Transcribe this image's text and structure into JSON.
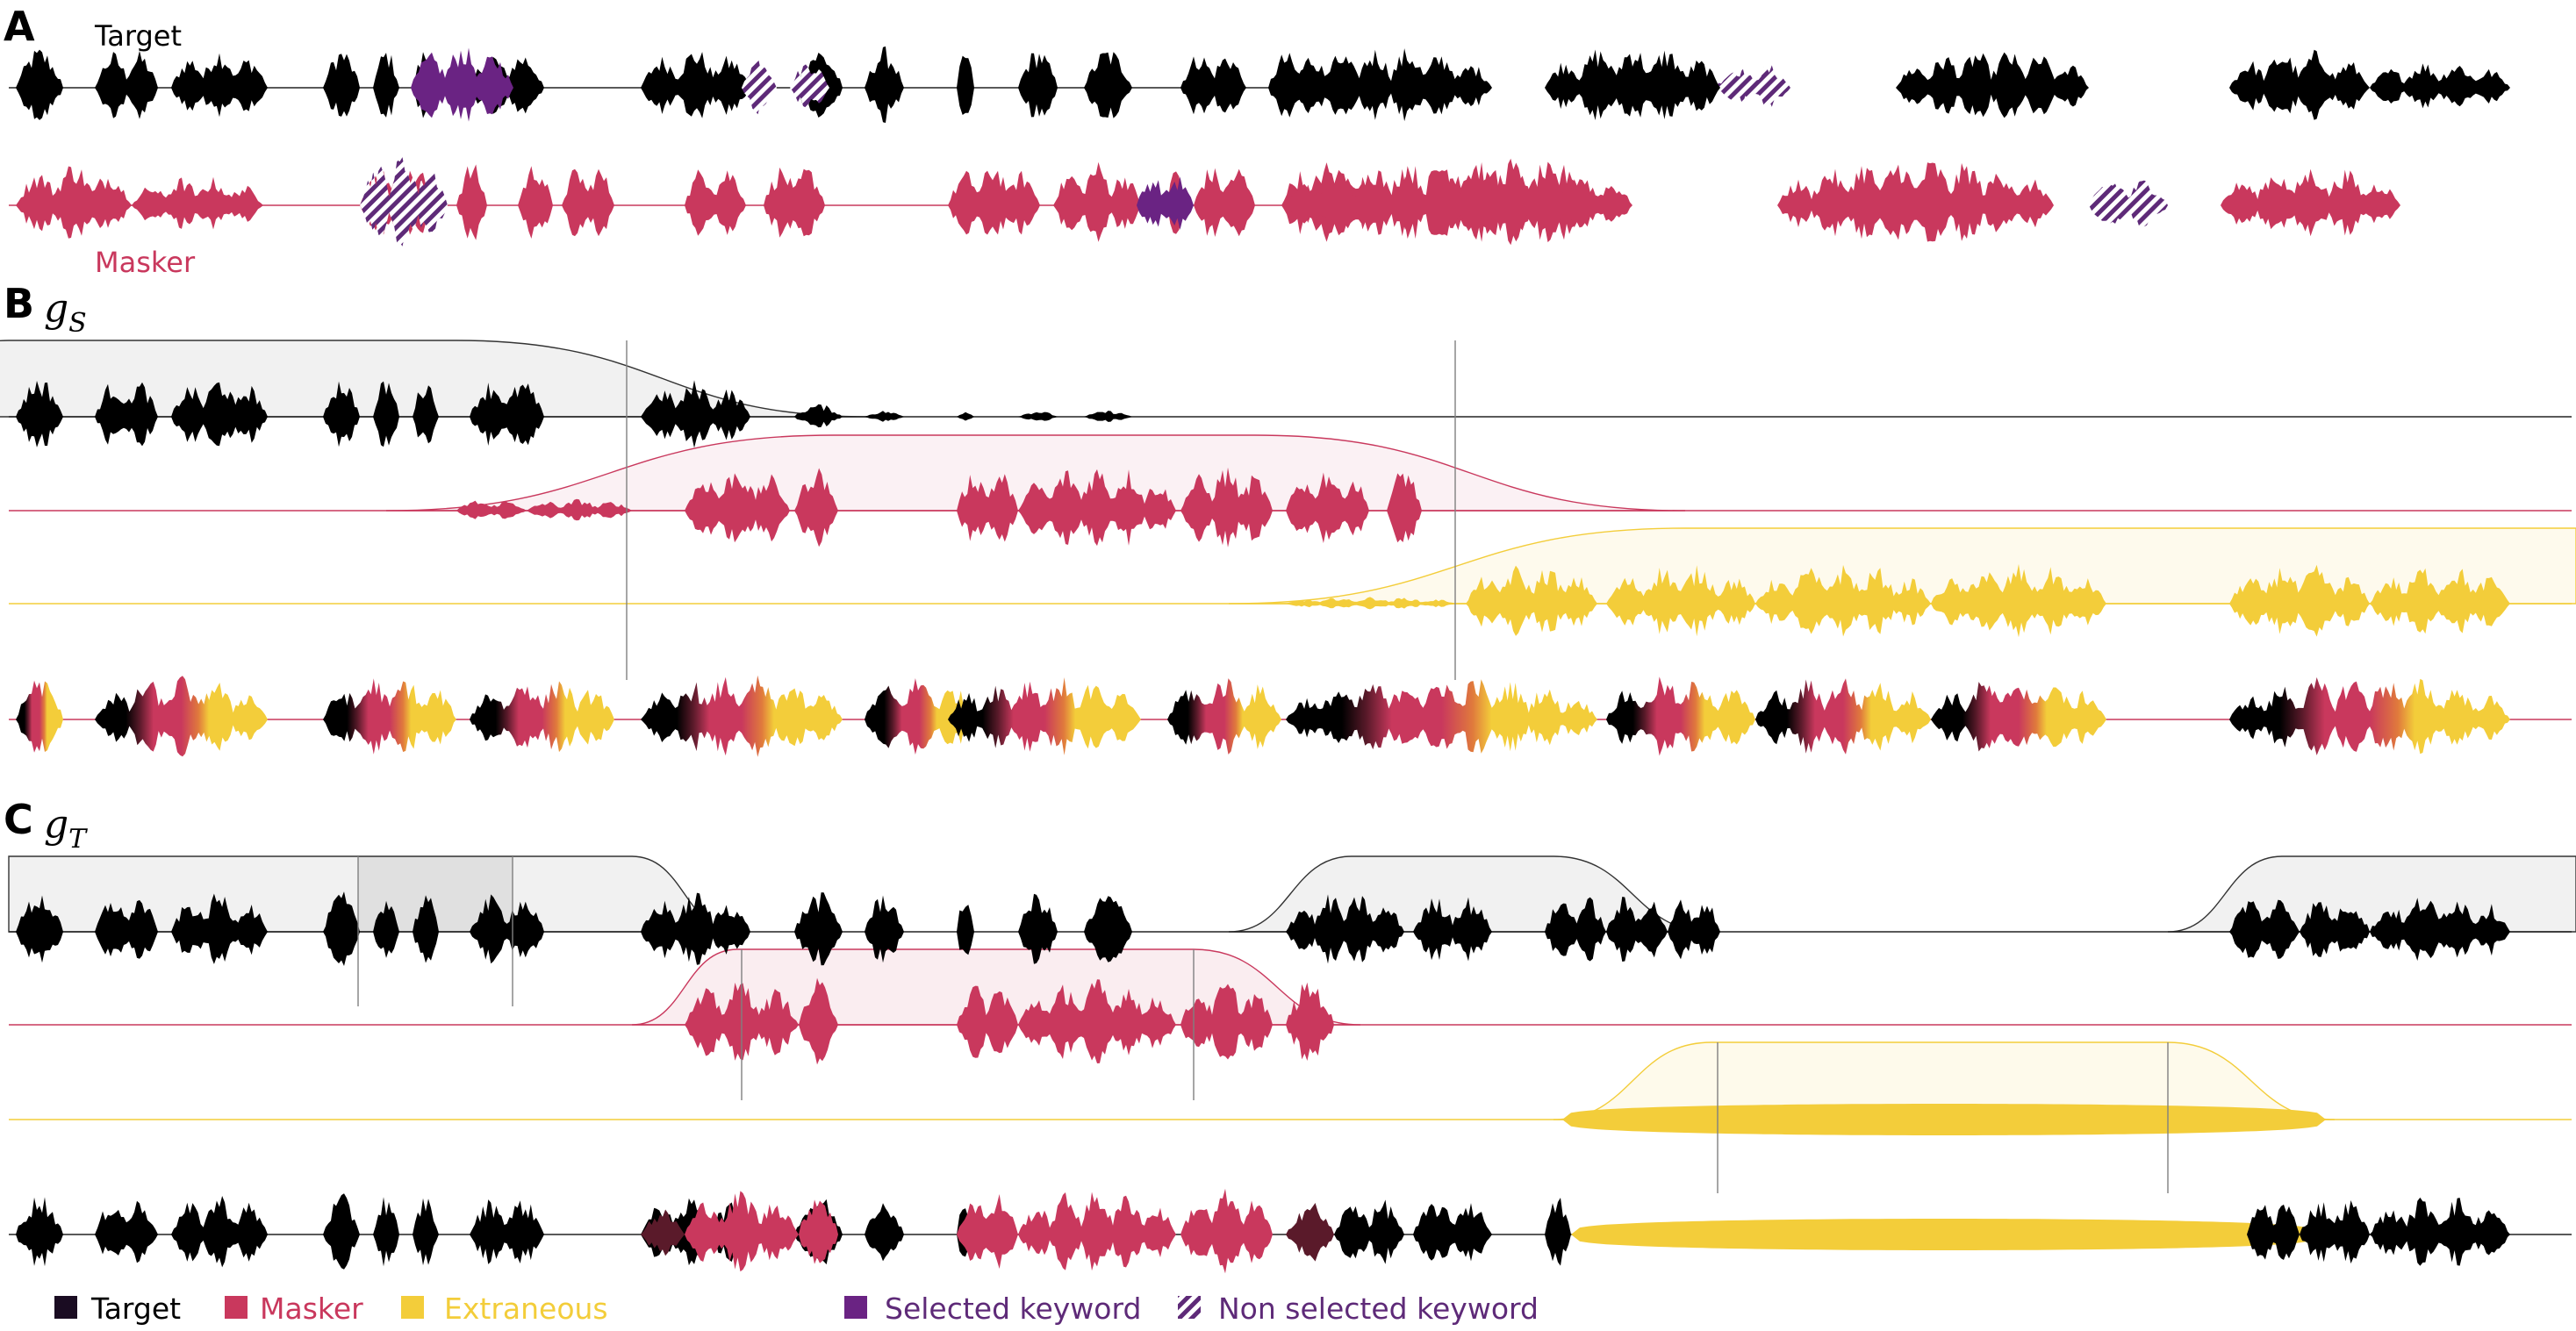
{
  "panels": {
    "a": {
      "letter": "A",
      "target_label": "Target",
      "masker_label": "Masker"
    },
    "b": {
      "letter": "B",
      "func": "g",
      "sub": "S"
    },
    "c": {
      "letter": "C",
      "func": "g",
      "sub": "T"
    }
  },
  "legend": {
    "target": "Target",
    "masker": "Masker",
    "extraneous": "Extraneous",
    "selected": "Selected keyword",
    "nonselected": "Non selected keyword"
  },
  "colors": {
    "target": "#000000",
    "masker": "#c9385d",
    "extraneous": "#f3cd3a",
    "keyword": "#6a2383",
    "keyword_text": "#5e2a78",
    "orange_mix": "#e07a3c",
    "dark_mix": "#5a1a2a"
  }
}
